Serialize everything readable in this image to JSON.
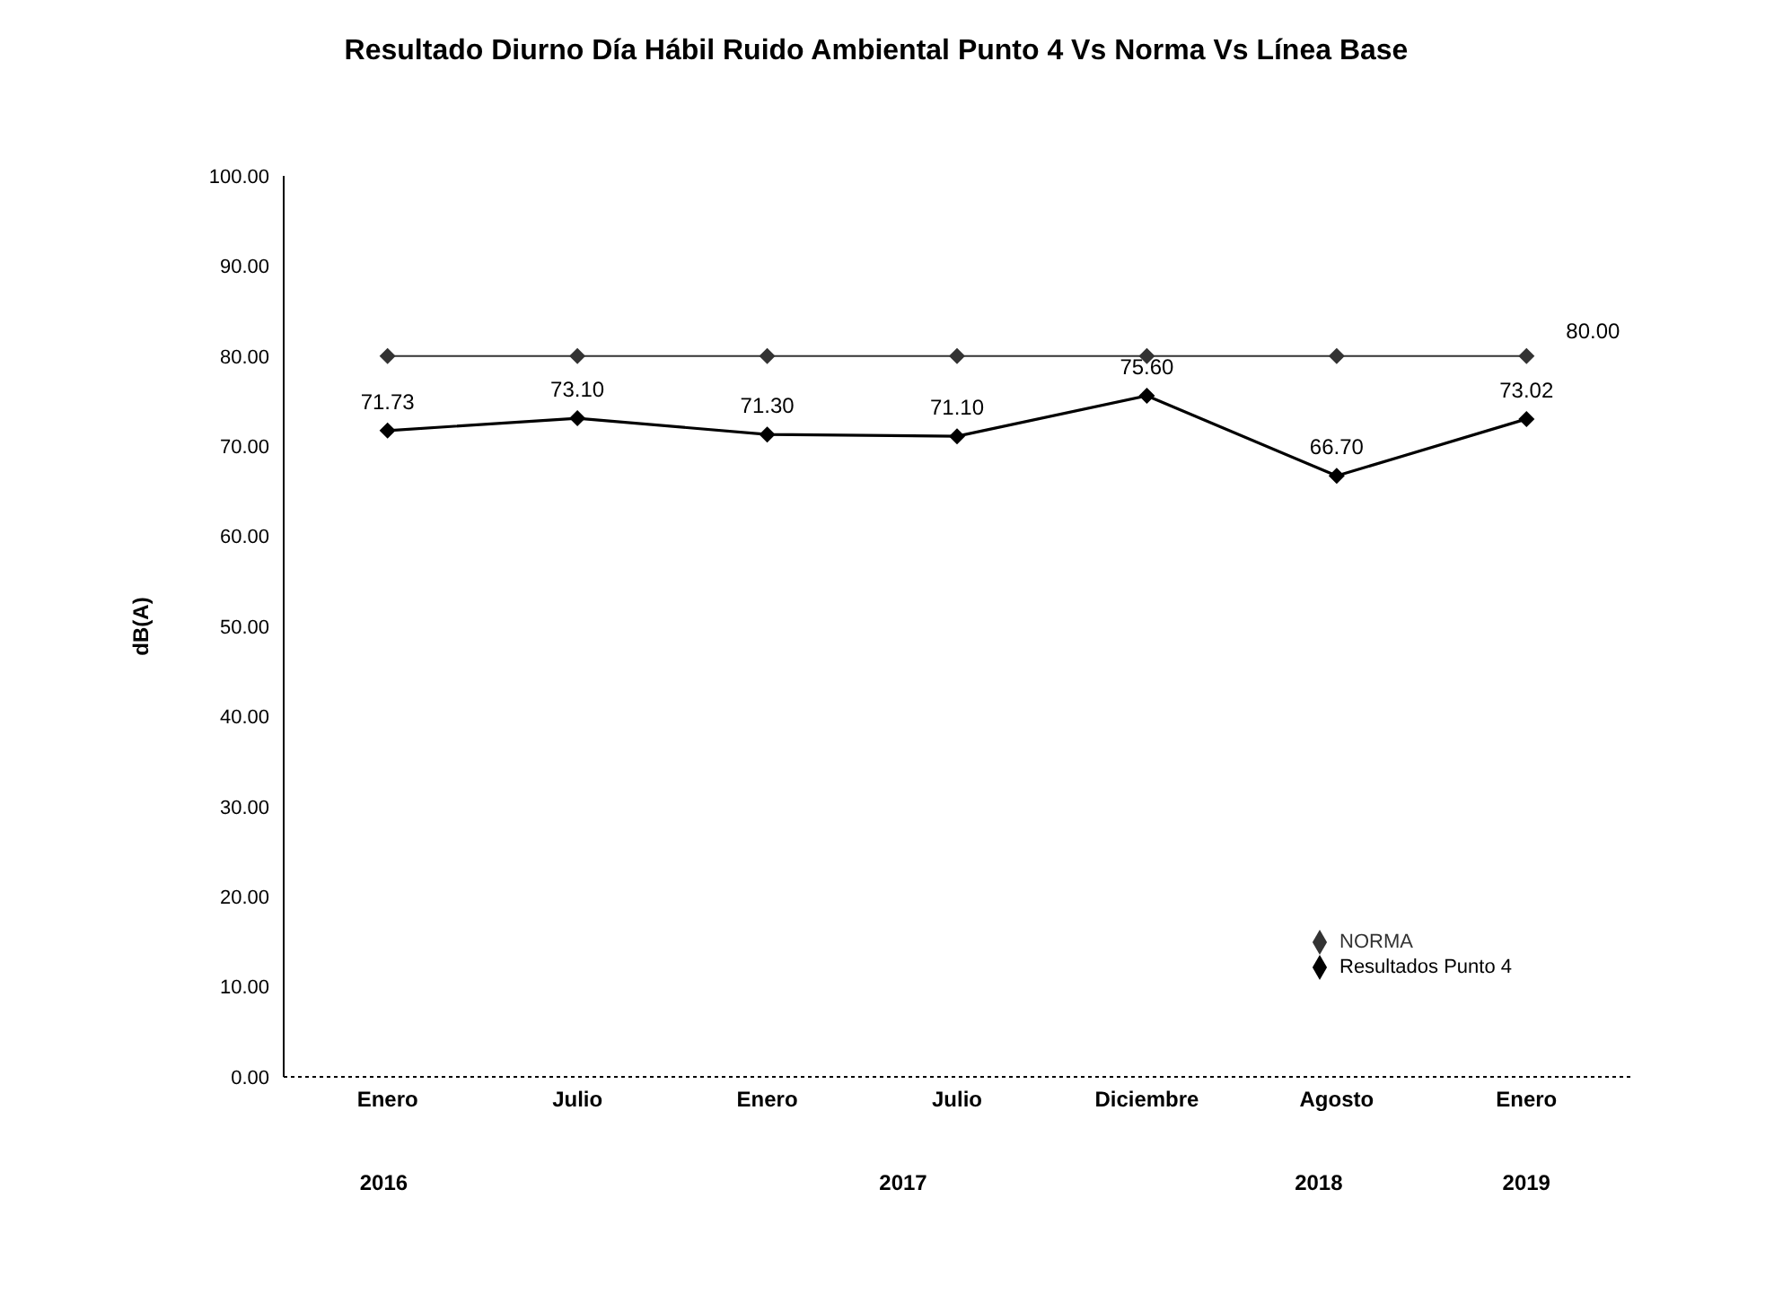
{
  "chart_data": {
    "type": "line",
    "title": "Resultado Diurno Día Hábil Ruido Ambiental Punto 4 Vs Norma Vs Línea Base",
    "ylabel": "dB(A)",
    "categories": [
      "Enero",
      "Julio",
      "Enero",
      "Julio",
      "Diciembre",
      "Agosto",
      "Enero"
    ],
    "annotations": [
      "2016",
      "2017",
      "2018",
      "2019"
    ],
    "series": [
      {
        "name": "Resultados Punto 4",
        "color": "#000000",
        "values": [
          71.73,
          73.1,
          71.3,
          71.1,
          75.6,
          66.7,
          73.02
        ],
        "value_labels": [
          "71.73",
          "73.10",
          "71.30",
          "71.10",
          "75.60",
          "66.70",
          "73.02"
        ]
      },
      {
        "name": "NORMA",
        "color": "#333333",
        "values": [
          80,
          80,
          80,
          80,
          80,
          80,
          80
        ],
        "value_labels": [
          null,
          null,
          null,
          null,
          null,
          null,
          "80.00"
        ]
      }
    ],
    "ylim": [
      0,
      100
    ],
    "yticks": [
      {
        "value": 0,
        "label": "0.00"
      },
      {
        "value": 10,
        "label": "10.00"
      },
      {
        "value": 20,
        "label": "20.00"
      },
      {
        "value": 30,
        "label": "30.00"
      },
      {
        "value": 40,
        "label": "40.00"
      },
      {
        "value": 50,
        "label": "50.00"
      },
      {
        "value": 60,
        "label": "60.00"
      },
      {
        "value": 70,
        "label": "70.00"
      },
      {
        "value": 80,
        "label": "80.00"
      },
      {
        "value": 90,
        "label": "90.00"
      },
      {
        "value": 100,
        "label": "100.00"
      }
    ],
    "grid": false,
    "legend": "right",
    "marker": "diamond",
    "line_style": "solid"
  }
}
